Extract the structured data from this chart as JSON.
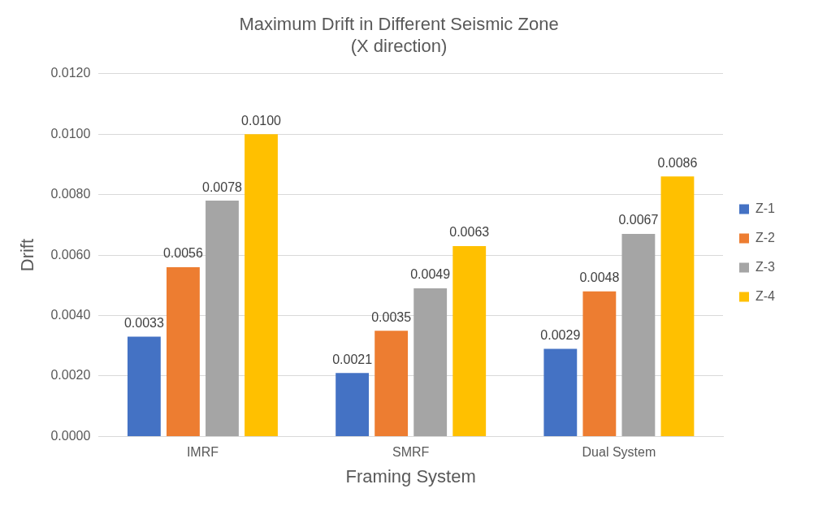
{
  "chart_data": {
    "type": "bar",
    "title": "Maximum Drift in Different Seismic Zone\n(X direction)",
    "xlabel": "Framing System",
    "ylabel": "Drift",
    "categories": [
      "IMRF",
      "SMRF",
      "Dual System"
    ],
    "series": [
      {
        "name": "Z-1",
        "color": "#4472c4",
        "values": [
          0.0033,
          0.0021,
          0.0029
        ],
        "value_labels": [
          "0.0033",
          "0.0021",
          "0.0029"
        ]
      },
      {
        "name": "Z-2",
        "color": "#ed7d31",
        "values": [
          0.0056,
          0.0035,
          0.0048
        ],
        "value_labels": [
          "0.0056",
          "0.0035",
          "0.0048"
        ]
      },
      {
        "name": "Z-3",
        "color": "#a5a5a5",
        "values": [
          0.0078,
          0.0049,
          0.0067
        ],
        "value_labels": [
          "0.0078",
          "0.0049",
          "0.0067"
        ]
      },
      {
        "name": "Z-4",
        "color": "#ffc000",
        "values": [
          0.01,
          0.0063,
          0.0086
        ],
        "value_labels": [
          "0.0100",
          "0.0063",
          "0.0086"
        ]
      }
    ],
    "ylim": [
      0,
      0.012
    ],
    "yticks": [
      {
        "value": 0,
        "label": "0.0000"
      },
      {
        "value": 0.002,
        "label": "0.0020"
      },
      {
        "value": 0.004,
        "label": "0.0040"
      },
      {
        "value": 0.006,
        "label": "0.0060"
      },
      {
        "value": 0.008,
        "label": "0.0080"
      },
      {
        "value": 0.01,
        "label": "0.0100"
      },
      {
        "value": 0.012,
        "label": "0.0120"
      }
    ],
    "grid": "y",
    "legend": "right"
  }
}
